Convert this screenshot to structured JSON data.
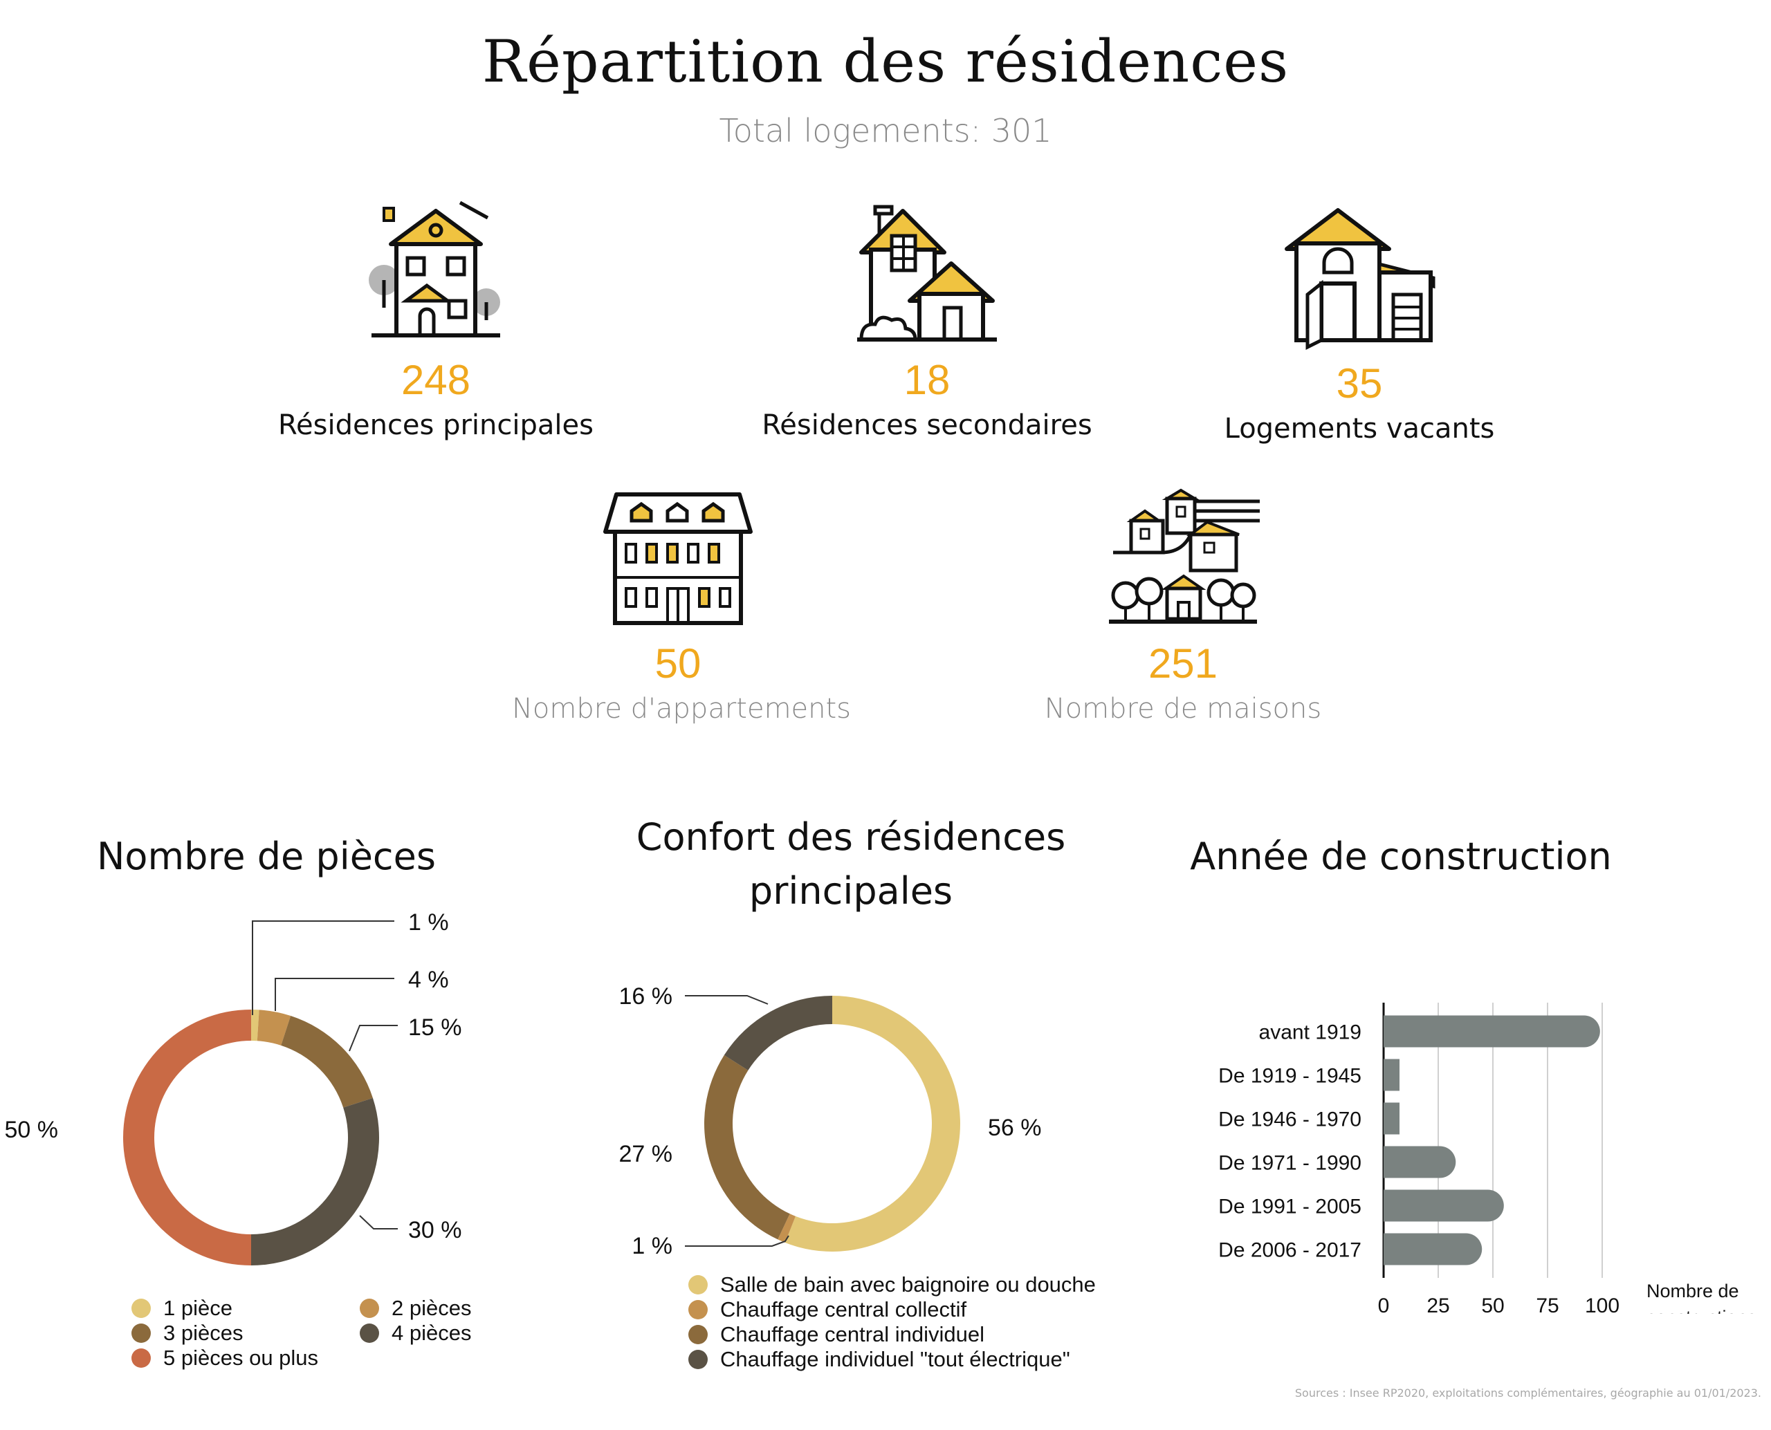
{
  "header": {
    "title": "Répartition des résidences",
    "subtitle": "Total logements: 301"
  },
  "stats": [
    {
      "value": "248",
      "label": "Résidences principales",
      "icon": "townhouse-icon"
    },
    {
      "value": "18",
      "label": "Résidences secondaires",
      "icon": "country-house-icon"
    },
    {
      "value": "35",
      "label": "Logements vacants",
      "icon": "vacant-house-icon"
    },
    {
      "value": "50",
      "label": "Nombre d'appartements",
      "icon": "apartment-building-icon"
    },
    {
      "value": "251",
      "label": "Nombre de maisons",
      "icon": "village-houses-icon"
    }
  ],
  "colors": {
    "accent": "#f0a81e",
    "light_gold": "#e2c776",
    "tan": "#c4914f",
    "brown": "#8b6a3c",
    "dark": "#5a5245",
    "terracotta": "#c96a45",
    "bar_gray": "#7a8280"
  },
  "chart_data": [
    {
      "type": "pie",
      "title": "Nombre de pièces",
      "donut": true,
      "categories": [
        "1 pièce",
        "2 pièces",
        "3 pièces",
        "4 pièces",
        "5 pièces ou plus"
      ],
      "values": [
        1,
        4,
        15,
        30,
        50
      ],
      "data_labels": [
        "1 %",
        "4 %",
        "15 %",
        "30 %",
        "50 %"
      ],
      "colors": [
        "#e2c776",
        "#c4914f",
        "#8b6a3c",
        "#5a5245",
        "#c96a45"
      ],
      "legend": "bottom"
    },
    {
      "type": "pie",
      "title": "Confort des résidences principales",
      "donut": true,
      "categories": [
        "Salle de bain avec baignoire ou douche",
        "Chauffage central collectif",
        "Chauffage central individuel",
        "Chauffage individuel \"tout électrique\""
      ],
      "values": [
        56,
        1,
        27,
        16
      ],
      "data_labels": [
        "56 %",
        "1 %",
        "27 %",
        "16 %"
      ],
      "colors": [
        "#e2c776",
        "#c4914f",
        "#8b6a3c",
        "#5a5245"
      ],
      "legend": "bottom"
    },
    {
      "type": "bar",
      "orientation": "horizontal",
      "title": "Année de construction",
      "categories": [
        "avant 1919",
        "De 1919 - 1945",
        "De 1946 - 1970",
        "De 1971 - 1990",
        "De 1991 - 2005",
        "De 2006 - 2017"
      ],
      "values": [
        99,
        7,
        7,
        33,
        55,
        45
      ],
      "xlabel": "Nombre de constructions",
      "xlim": [
        0,
        100
      ],
      "xticks": [
        "0",
        "25",
        "50",
        "75",
        "100"
      ],
      "grid": true,
      "color": "#7a8280"
    }
  ],
  "footer": {
    "source": "Sources : Insee RP2020, exploitations complémentaires, géographie au 01/01/2023."
  }
}
